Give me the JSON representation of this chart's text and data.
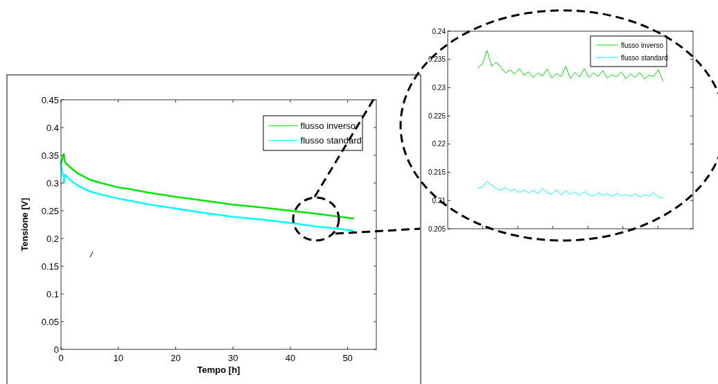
{
  "chart_data": [
    {
      "type": "line",
      "xlabel": "Tempo [h]",
      "ylabel": "Tensione [V]",
      "xlim": [
        0,
        55
      ],
      "xticks": [
        0,
        10,
        20,
        30,
        40,
        50
      ],
      "ylim": [
        0,
        0.45
      ],
      "yticks": [
        0,
        0.05,
        0.1,
        0.15,
        0.2,
        0.25,
        0.3,
        0.35,
        0.4,
        0.45
      ],
      "legend": "top right",
      "series": [
        {
          "name": "flusso inverso",
          "color": "#00e600",
          "x": [
            0,
            0.3,
            0.5,
            0.7,
            1,
            2,
            3,
            5,
            7,
            10,
            12,
            15,
            20,
            25,
            30,
            35,
            40,
            45,
            48,
            51
          ],
          "values": [
            0.335,
            0.345,
            0.352,
            0.338,
            0.334,
            0.325,
            0.317,
            0.306,
            0.3,
            0.292,
            0.289,
            0.283,
            0.275,
            0.268,
            0.261,
            0.256,
            0.25,
            0.244,
            0.24,
            0.236
          ]
        },
        {
          "name": "flusso standard",
          "color": "#00ffff",
          "x": [
            0,
            0.2,
            0.5,
            0.55,
            0.7,
            1,
            2,
            3,
            5,
            7,
            10,
            12,
            15,
            20,
            25,
            30,
            35,
            40,
            45,
            48,
            51
          ],
          "values": [
            0.335,
            0.32,
            0.31,
            0.3,
            0.315,
            0.312,
            0.302,
            0.295,
            0.285,
            0.279,
            0.272,
            0.268,
            0.262,
            0.254,
            0.246,
            0.239,
            0.234,
            0.228,
            0.221,
            0.218,
            0.214
          ]
        }
      ]
    },
    {
      "type": "line",
      "ylim": [
        0.205,
        0.24
      ],
      "yticks": [
        0.205,
        0.21,
        0.215,
        0.22,
        0.225,
        0.23,
        0.235,
        0.24
      ],
      "tick_labels": "y",
      "legend": "top right",
      "categories": [
        null,
        null,
        null,
        null,
        null,
        null,
        null,
        null,
        null,
        null,
        null,
        null,
        null,
        null,
        null,
        null,
        null,
        null,
        null,
        null,
        null,
        null,
        null,
        null,
        null,
        null,
        null,
        null,
        null,
        null,
        null,
        null,
        null,
        null,
        null,
        null,
        null,
        null,
        null,
        null,
        null,
        null,
        null,
        null,
        null,
        null,
        null,
        null,
        null,
        null,
        null,
        null,
        null
      ],
      "series": [
        {
          "name": "flusso inverso",
          "color": "#00e600",
          "values": [
            null,
            null,
            null,
            null,
            null,
            null,
            0.2335,
            0.2342,
            0.2366,
            0.2338,
            0.2345,
            0.2336,
            0.2326,
            0.2331,
            0.2324,
            0.2334,
            0.2322,
            0.2328,
            0.2318,
            0.2326,
            0.2321,
            0.2333,
            0.2317,
            0.2325,
            0.232,
            0.2338,
            0.2316,
            0.2327,
            0.2319,
            0.2334,
            0.2318,
            0.2326,
            0.232,
            0.233,
            0.2317,
            0.2323,
            0.2319,
            0.2328,
            0.2316,
            0.2324,
            0.2318,
            0.2327,
            0.2315,
            0.2322,
            0.232,
            0.2332,
            0.2312,
            null,
            null,
            null,
            null,
            null,
            null
          ]
        },
        {
          "name": "flusso standard",
          "color": "#00ffff",
          "values": [
            null,
            null,
            null,
            null,
            null,
            null,
            0.2122,
            0.2124,
            0.2134,
            0.2127,
            0.2121,
            0.2118,
            0.2123,
            0.2117,
            0.212,
            0.2114,
            0.2119,
            0.2113,
            0.2118,
            0.2112,
            0.2122,
            0.2114,
            0.2111,
            0.2119,
            0.211,
            0.2117,
            0.2111,
            0.2115,
            0.2109,
            0.2116,
            0.211,
            0.2108,
            0.2114,
            0.2109,
            0.2112,
            0.2107,
            0.2113,
            0.2108,
            0.2111,
            0.2107,
            0.2112,
            0.2106,
            0.211,
            0.2108,
            0.2114,
            0.2106,
            0.2105,
            null,
            null,
            null,
            null,
            null,
            null
          ]
        }
      ]
    }
  ]
}
